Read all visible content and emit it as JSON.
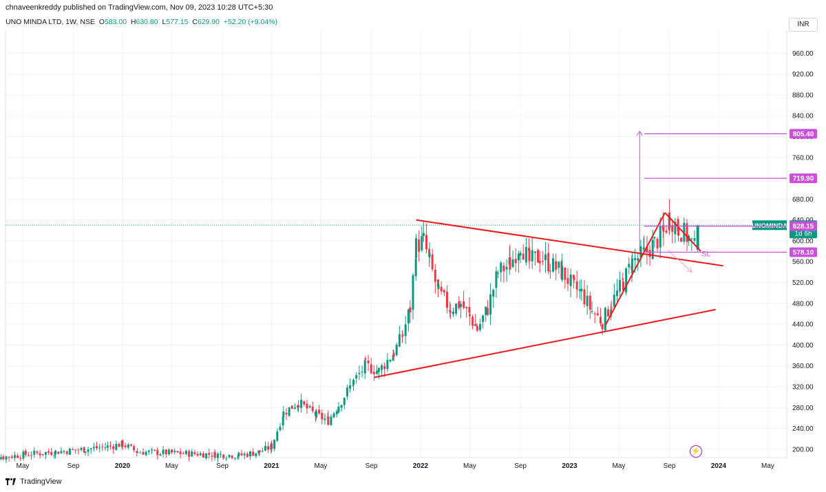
{
  "header": {
    "publisher": "chnaveenkreddy published on TradingView.com, Nov 09, 2023 10:28 UTC+5:30",
    "symbol": "UNO MINDA LTD, 1W, NSE",
    "open_label": "O",
    "open": "583.00",
    "high_label": "H",
    "high": "630.80",
    "low_label": "L",
    "low": "577.15",
    "close_label": "C",
    "close": "629.90",
    "change": "+52.20 (+9.04%)",
    "currency": "INR"
  },
  "footer": {
    "brand": "TradingView"
  },
  "colors": {
    "up": "#089981",
    "down": "#f23645",
    "trendline": "#f0161a",
    "target": "#cc4fdc",
    "grid": "#f0f3fa"
  },
  "chart_data": {
    "type": "candlestick",
    "ylim": [
      180,
      1000
    ],
    "y_ticks": [
      "200.00",
      "240.00",
      "280.00",
      "320.00",
      "360.00",
      "400.00",
      "440.00",
      "480.00",
      "520.00",
      "560.00",
      "600.00",
      "640.00",
      "680.00",
      "720.00",
      "760.00",
      "800.00",
      "840.00",
      "880.00",
      "920.00",
      "960.00"
    ],
    "x_ticks": [
      {
        "label": "May",
        "t": 2019.33
      },
      {
        "label": "Sep",
        "t": 2019.67
      },
      {
        "label": "2020",
        "t": 2020.0
      },
      {
        "label": "May",
        "t": 2020.33
      },
      {
        "label": "Sep",
        "t": 2020.67
      },
      {
        "label": "2021",
        "t": 2021.0
      },
      {
        "label": "May",
        "t": 2021.33
      },
      {
        "label": "Sep",
        "t": 2021.67
      },
      {
        "label": "2022",
        "t": 2022.0
      },
      {
        "label": "May",
        "t": 2022.33
      },
      {
        "label": "Sep",
        "t": 2022.67
      },
      {
        "label": "2023",
        "t": 2023.0
      },
      {
        "label": "May",
        "t": 2023.33
      },
      {
        "label": "Sep",
        "t": 2023.67
      },
      {
        "label": "2024",
        "t": 2024.0
      },
      {
        "label": "May",
        "t": 2024.33
      }
    ],
    "price_path": [
      [
        2019.05,
        190
      ],
      [
        2019.2,
        185
      ],
      [
        2019.35,
        190
      ],
      [
        2019.55,
        195
      ],
      [
        2019.75,
        200
      ],
      [
        2019.9,
        205
      ],
      [
        2020.0,
        210
      ],
      [
        2020.1,
        195
      ],
      [
        2020.62,
        190
      ],
      [
        2020.78,
        188
      ],
      [
        2020.92,
        195
      ],
      [
        2021.0,
        205
      ],
      [
        2021.08,
        270
      ],
      [
        2021.18,
        290
      ],
      [
        2021.3,
        265
      ],
      [
        2021.38,
        255
      ],
      [
        2021.45,
        285
      ],
      [
        2021.55,
        330
      ],
      [
        2021.63,
        360
      ],
      [
        2021.72,
        350
      ],
      [
        2021.82,
        385
      ],
      [
        2021.88,
        420
      ],
      [
        2021.93,
        470
      ],
      [
        2021.97,
        590
      ],
      [
        2022.02,
        600
      ],
      [
        2022.06,
        560
      ],
      [
        2022.12,
        500
      ],
      [
        2022.2,
        470
      ],
      [
        2022.27,
        480
      ],
      [
        2022.33,
        455
      ],
      [
        2022.38,
        430
      ],
      [
        2022.45,
        470
      ],
      [
        2022.52,
        540
      ],
      [
        2022.6,
        555
      ],
      [
        2022.67,
        595
      ],
      [
        2022.73,
        560
      ],
      [
        2022.8,
        570
      ],
      [
        2022.87,
        555
      ],
      [
        2022.95,
        540
      ],
      [
        2023.03,
        510
      ],
      [
        2023.08,
        500
      ],
      [
        2023.15,
        465
      ],
      [
        2023.22,
        445
      ],
      [
        2023.28,
        480
      ],
      [
        2023.36,
        520
      ],
      [
        2023.42,
        560
      ],
      [
        2023.5,
        575
      ],
      [
        2023.57,
        595
      ],
      [
        2023.63,
        615
      ],
      [
        2023.67,
        645
      ],
      [
        2023.73,
        625
      ],
      [
        2023.8,
        605
      ],
      [
        2023.84,
        585
      ],
      [
        2023.86,
        629.9
      ]
    ],
    "last_candle": {
      "open": 583.0,
      "high": 630.8,
      "low": 577.15,
      "close": 629.9
    },
    "price_labels": [
      {
        "value": 805.4,
        "text": "805.40",
        "kind": "target"
      },
      {
        "value": 719.9,
        "text": "719.90",
        "kind": "target"
      },
      {
        "value": 629.9,
        "text": "629.90",
        "kind": "last",
        "name": "UNOMINDA",
        "countdown": "1d 6h"
      },
      {
        "value": 628.15,
        "text": "628.15",
        "kind": "target"
      },
      {
        "value": 578.1,
        "text": "578.10",
        "kind": "target"
      }
    ],
    "annotations": [
      {
        "text": "SL"
      }
    ],
    "trendlines": [
      {
        "from": [
          2021.69,
          338
        ],
        "to": [
          2023.98,
          468
        ]
      },
      {
        "from": [
          2021.97,
          640
        ],
        "to": [
          2024.03,
          552
        ]
      },
      {
        "from": [
          2023.24,
          438
        ],
        "to": [
          2023.64,
          654
        ]
      },
      {
        "from": [
          2023.64,
          654
        ],
        "to": [
          2023.88,
          580
        ]
      },
      {
        "from": [
          2023.47,
          580
        ],
        "to": [
          2023.47,
          810
        ]
      }
    ]
  }
}
